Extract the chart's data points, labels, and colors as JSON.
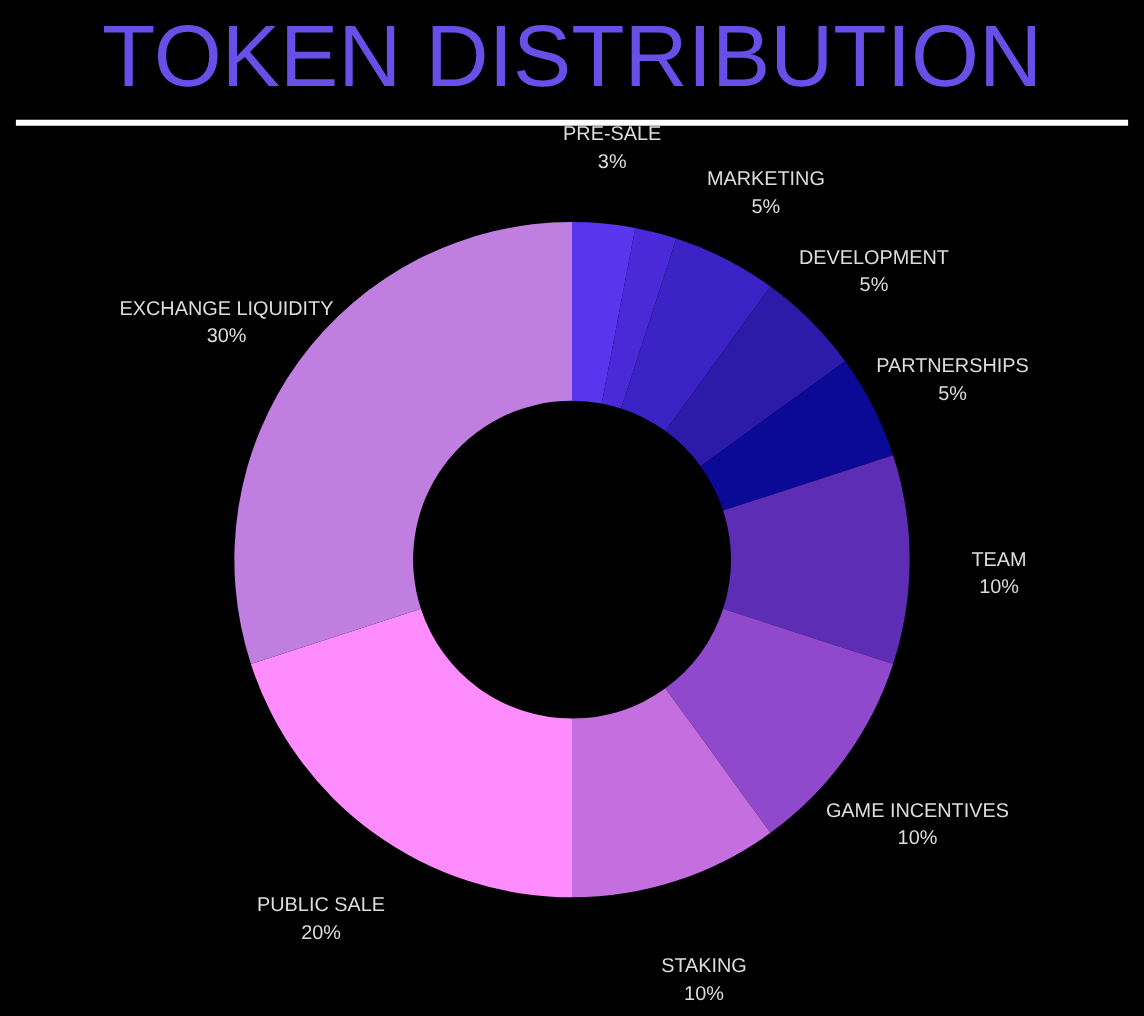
{
  "chart_data": {
    "type": "donut",
    "title": "TOKEN DISTRIBUTION",
    "categories": [
      "PRE-SALE",
      null,
      "MARKETING",
      "DEVELOPMENT",
      "PARTNERSHIPS",
      "TEAM",
      "GAME INCENTIVES",
      "STAKING",
      "PUBLIC SALE",
      "EXCHANGE LIQUIDITY"
    ],
    "values": [
      3,
      2,
      5,
      5,
      5,
      10,
      10,
      10,
      20,
      30
    ],
    "value_labels": [
      "3%",
      null,
      "5%",
      "5%",
      "5%",
      "10%",
      "10%",
      "10%",
      "20%",
      "30%"
    ],
    "colors": [
      "#5a35ee",
      "#4a2ad8",
      "#3b22c4",
      "#2c1aa8",
      "#0a0a96",
      "#5e2db5",
      "#9048cc",
      "#c46ee0",
      "#ff8cff",
      "#c07ee0"
    ]
  }
}
